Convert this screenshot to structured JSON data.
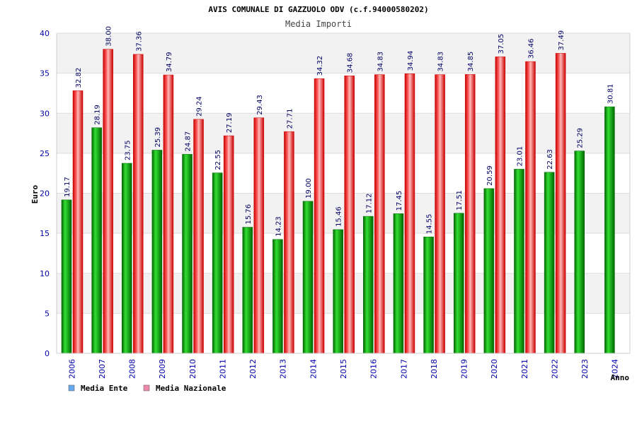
{
  "chart_data": {
    "type": "bar",
    "title": "AVIS COMUNALE DI GAZZUOLO ODV (c.f.94000580202)",
    "subtitle": "Media Importi",
    "ylabel": "Euro",
    "xlabel": "Anno",
    "ylim": [
      0,
      40
    ],
    "yticks": [
      0,
      5,
      10,
      15,
      20,
      25,
      30,
      35,
      40
    ],
    "grid": true,
    "legend_position": "bottom-left",
    "categories": [
      "2006",
      "2007",
      "2008",
      "2009",
      "2010",
      "2011",
      "2012",
      "2013",
      "2014",
      "2015",
      "2016",
      "2017",
      "2018",
      "2019",
      "2020",
      "2021",
      "2022",
      "2023",
      "2024"
    ],
    "series": [
      {
        "name": "Media Ente",
        "color": "#00aa00",
        "legend_color": "#66aaee",
        "values": [
          19.17,
          28.19,
          23.75,
          25.39,
          24.87,
          22.55,
          15.76,
          14.23,
          19.0,
          15.46,
          17.12,
          17.45,
          14.55,
          17.51,
          20.59,
          23.01,
          22.63,
          25.29,
          30.81
        ],
        "labels": [
          "19.17",
          "28.19",
          "23.75",
          "25.39",
          "24.87",
          "22.55",
          "15.76",
          "14.23",
          "19.00",
          "15.46",
          "17.12",
          "17.45",
          "14.55",
          "17.51",
          "20.59",
          "23.01",
          "22.63",
          "25.29",
          "30.81"
        ]
      },
      {
        "name": "Media Nazionale",
        "color": "#ee2222",
        "legend_color": "#ee88aa",
        "values": [
          32.82,
          38.0,
          37.36,
          34.79,
          29.24,
          27.19,
          29.43,
          27.71,
          34.32,
          34.68,
          34.83,
          34.94,
          34.83,
          34.85,
          37.05,
          36.46,
          37.49,
          null,
          null
        ],
        "labels": [
          "32.82",
          "38.00",
          "37.36",
          "34.79",
          "29.24",
          "27.19",
          "29.43",
          "27.71",
          "34.32",
          "34.68",
          "34.83",
          "34.94",
          "34.83",
          "34.85",
          "37.05",
          "36.46",
          "37.49",
          "",
          ""
        ]
      }
    ]
  }
}
